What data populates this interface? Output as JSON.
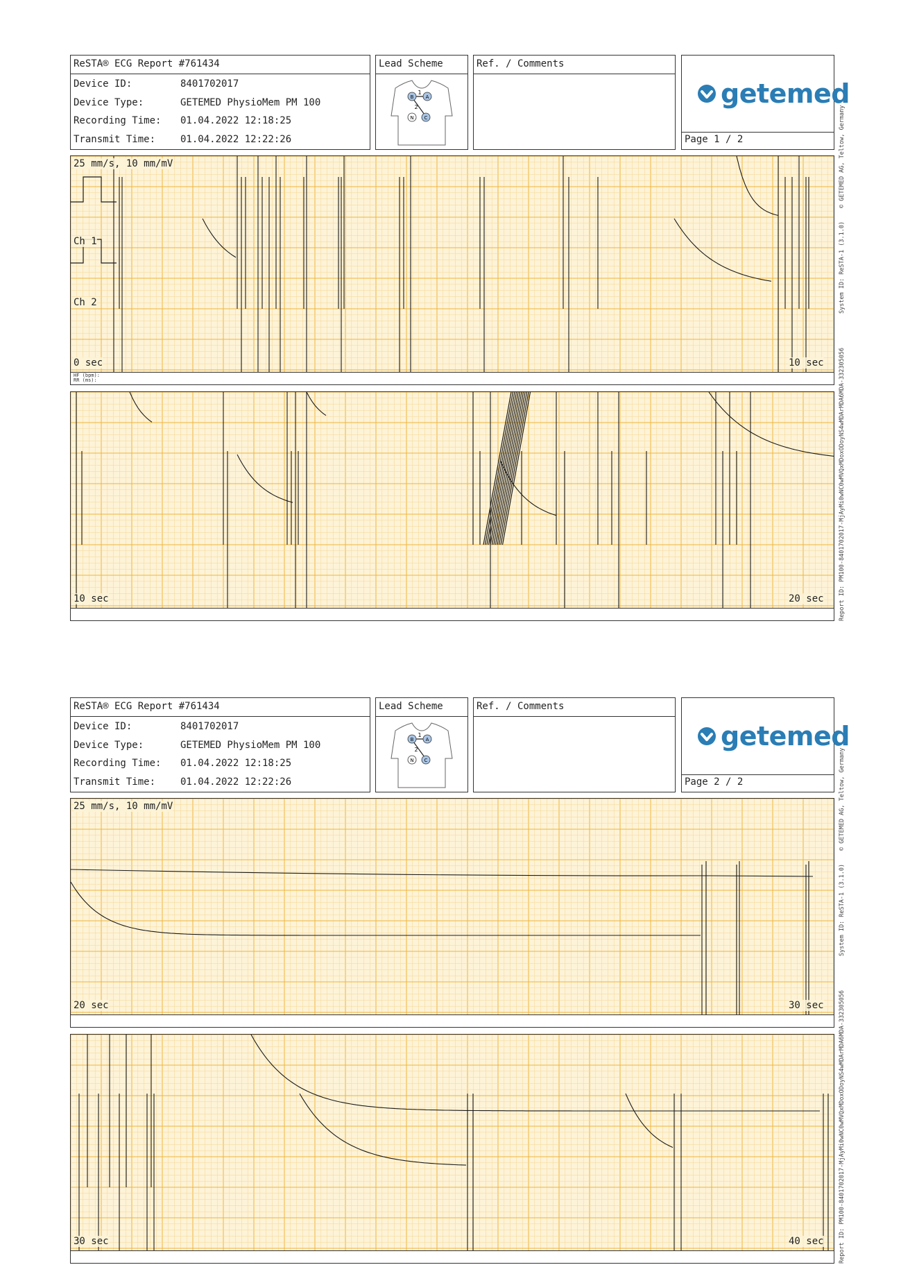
{
  "colors": {
    "brand": "#2a7db5",
    "grid_major": "#f0b43a",
    "grid_minor": "#f6d68d",
    "paper": "#fdf3d8",
    "trace": "#1a1a1a"
  },
  "side_text": {
    "copyright": "© GETEMED AG, Teltow, Germany",
    "system": "System ID: ReSTA-1 (3.1.0)",
    "report": "Report ID: PM100-8401702017-MjAyMi0wNC0wMVQxMDoxODoyNS4wMDArMDA6MDA-332305056"
  },
  "pages": [
    {
      "report_title": "ReSTA® ECG Report #761434",
      "device_id_label": "Device ID:",
      "device_id": "8401702017",
      "device_type_label": "Device Type:",
      "device_type": "GETEMED PhysioMem PM 100",
      "recording_time_label": "Recording Time:",
      "recording_time": "01.04.2022 12:18:25",
      "transmit_time_label": "Transmit Time:",
      "transmit_time": "01.04.2022 12:22:26",
      "lead_scheme_label": "Lead Scheme",
      "comments_label": "Ref. / Comments",
      "logo_text": "getemed",
      "page_label": "Page 1 / 2",
      "lead_icon": "torso-electrode-diagram",
      "electrodes": [
        "B",
        "A",
        "N",
        "C"
      ],
      "lead_numbers": [
        "1",
        "2"
      ],
      "strips": [
        {
          "speed_label": "25 mm/s, 10 mm/mV",
          "ch1": "Ch 1",
          "ch2": "Ch 2",
          "start_label": "0 sec",
          "end_label": "10 sec",
          "hf_label": "HF (bpm):",
          "rr_label": "RR (ms):"
        },
        {
          "start_label": "10 sec",
          "end_label": "20 sec"
        }
      ]
    },
    {
      "report_title": "ReSTA® ECG Report #761434",
      "device_id_label": "Device ID:",
      "device_id": "8401702017",
      "device_type_label": "Device Type:",
      "device_type": "GETEMED PhysioMem PM 100",
      "recording_time_label": "Recording Time:",
      "recording_time": "01.04.2022 12:18:25",
      "transmit_time_label": "Transmit Time:",
      "transmit_time": "01.04.2022 12:22:26",
      "lead_scheme_label": "Lead Scheme",
      "comments_label": "Ref. / Comments",
      "logo_text": "getemed",
      "page_label": "Page 2 / 2",
      "lead_icon": "torso-electrode-diagram",
      "electrodes": [
        "B",
        "A",
        "N",
        "C"
      ],
      "lead_numbers": [
        "1",
        "2"
      ],
      "strips": [
        {
          "speed_label": "25 mm/s, 10 mm/mV",
          "start_label": "20 sec",
          "end_label": "30 sec"
        },
        {
          "start_label": "30 sec",
          "end_label": "40 sec"
        }
      ]
    }
  ]
}
